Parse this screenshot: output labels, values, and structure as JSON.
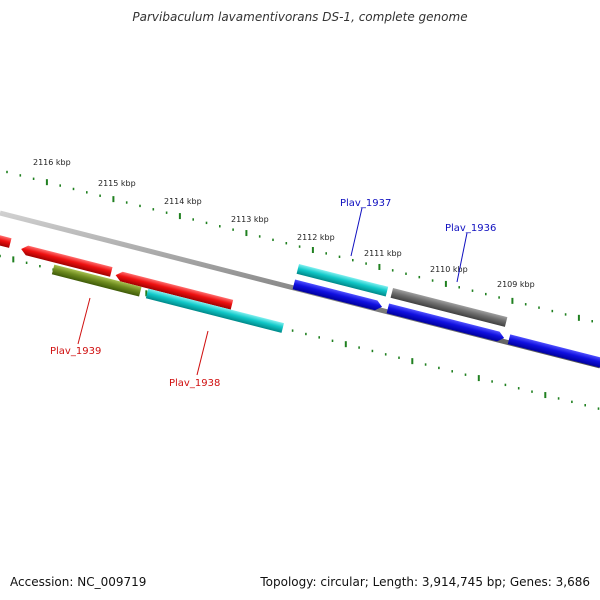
{
  "title": "Parvibaculum lavamentivorans DS-1, complete genome",
  "footer": {
    "accession": "Accession: NC_009719",
    "summary": "Topology: circular; Length: 3,914,745 bp; Genes: 3,686"
  },
  "colors": {
    "red": "#e81010",
    "cyan": "#10c8c8",
    "blue": "#1010e0",
    "gray": "#6e6e6e",
    "olive": "#6e8c20",
    "tick": "#208020",
    "label_red": "#d01010",
    "label_blue": "#1010c0"
  },
  "kbp_labels": [
    "2116 kbp",
    "2115 kbp",
    "2114 kbp",
    "2113 kbp",
    "2112 kbp",
    "2111 kbp",
    "2110 kbp",
    "2109 kbp"
  ],
  "gene_labels": [
    {
      "text": "Plav_1937",
      "color": "blue"
    },
    {
      "text": "Plav_1936",
      "color": "blue"
    },
    {
      "text": "Plav_1939",
      "color": "red"
    },
    {
      "text": "Plav_1938",
      "color": "red"
    }
  ]
}
